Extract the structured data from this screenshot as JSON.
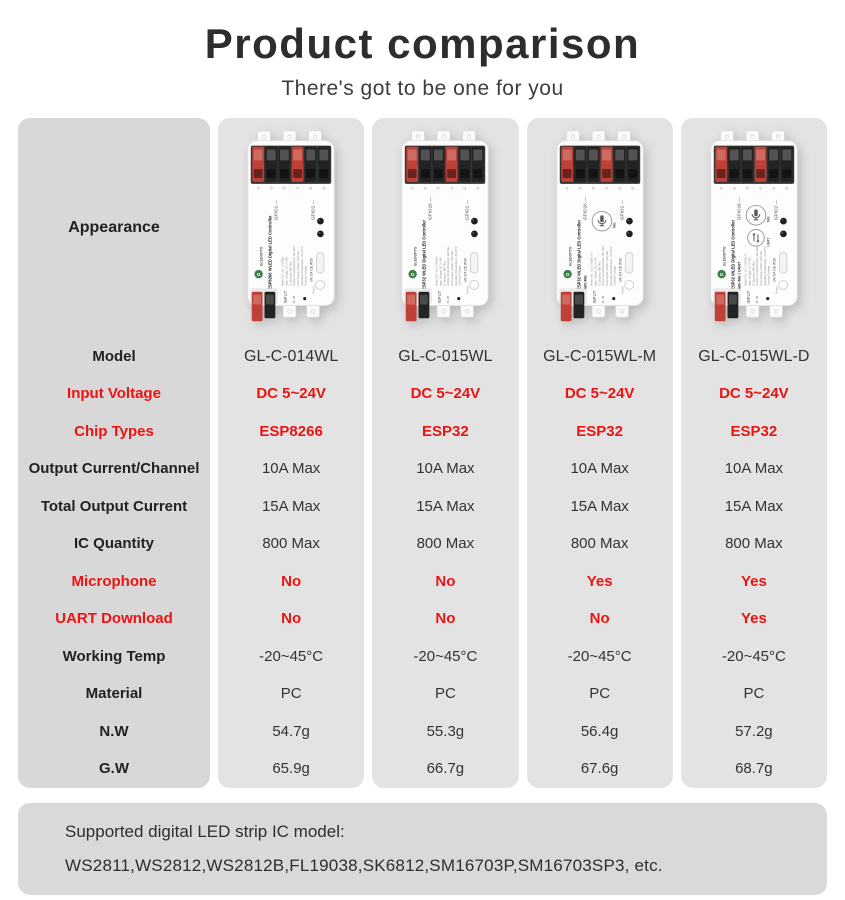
{
  "header": {
    "title": "Product comparison",
    "subtitle": "There's got to be one for you"
  },
  "table": {
    "appearance_label": "Appearance",
    "row_labels": [
      {
        "label": "Model",
        "red": false
      },
      {
        "label": "Input Voltage",
        "red": true
      },
      {
        "label": "Chip Types",
        "red": true
      },
      {
        "label": "Output Current/Channel",
        "red": false
      },
      {
        "label": "Total Output Current",
        "red": false
      },
      {
        "label": "IC Quantity",
        "red": false
      },
      {
        "label": "Microphone",
        "red": true
      },
      {
        "label": "UART Download",
        "red": true
      },
      {
        "label": "Working Temp",
        "red": false
      },
      {
        "label": "Material",
        "red": false
      },
      {
        "label": "N.W",
        "red": false
      },
      {
        "label": "G.W",
        "red": false
      }
    ],
    "products": [
      {
        "model": "GL-C-014WL",
        "values": [
          "GL-C-014WL",
          "DC 5~24V",
          "ESP8266",
          "10A Max",
          "15A Max",
          "800 Max",
          "No",
          "No",
          "-20~45°C",
          "PC",
          "54.7g",
          "65.9g"
        ],
        "device": {
          "brand": "GLEDOPTO",
          "line1": "ESP8266 WLED Digital LED Controller",
          "line2": "",
          "gpio1": "GPIO1",
          "gpio2": "GPIO2",
          "has_mic": false,
          "has_uart": false,
          "mic_label": "Mic",
          "uart_label": "UART",
          "input_label": "INPUT",
          "reset_label": "Reset",
          "cert_marks": "UK CA  CE  IP20",
          "spec_lines": [
            "Model NO.: GL-C-014WL",
            "Input Voltage: DC 5~24V",
            "IC Quantity: 800 Max",
            "Output Current/Channel: 10A Max",
            "Total Output Current: 15A Max",
            "Operating Temperature: -20~45°C",
            "Constant Voltage"
          ]
        }
      },
      {
        "model": "GL-C-015WL",
        "values": [
          "GL-C-015WL",
          "DC 5~24V",
          "ESP32",
          "10A Max",
          "15A Max",
          "800 Max",
          "No",
          "No",
          "-20~45°C",
          "PC",
          "55.3g",
          "66.7g"
        ],
        "device": {
          "brand": "GLEDOPTO",
          "line1": "ESP32 WLED Digital LED Controller",
          "line2": "",
          "gpio1": "GPIO16",
          "gpio2": "GPIO2",
          "has_mic": false,
          "has_uart": false,
          "mic_label": "Mic",
          "uart_label": "UART",
          "input_label": "INPUT",
          "reset_label": "Reset",
          "cert_marks": "UK CA  CE  IP20",
          "spec_lines": [
            "Model NO.: GL-C-015WL",
            "Input Voltage: DC 5~24V",
            "IC Quantity: 800 Max",
            "Output Current/Channel: 10A Max",
            "Total Output Current: 15A Max",
            "Operating Temperature: -20~45°C",
            "Constant Voltage"
          ]
        }
      },
      {
        "model": "GL-C-015WL-M",
        "values": [
          "GL-C-015WL-M",
          "DC 5~24V",
          "ESP32",
          "10A Max",
          "15A Max",
          "800 Max",
          "Yes",
          "No",
          "-20~45°C",
          "PC",
          "56.4g",
          "67.6g"
        ],
        "device": {
          "brand": "GLEDOPTO",
          "line1": "ESP32 WLED Digital LED Controller",
          "line2": "with Mic",
          "gpio1": "GPIO16",
          "gpio2": "GPIO2",
          "has_mic": true,
          "has_uart": false,
          "mic_label": "Mic",
          "uart_label": "UART",
          "input_label": "INPUT",
          "reset_label": "Reset",
          "cert_marks": "UK CA  CE  IP20",
          "spec_lines": [
            "Model NO.: GL-C-015WL-M",
            "Input Voltage: DC 5~24V",
            "IC Quantity: 800 Max",
            "Output Current/Channel: 10A Max",
            "Total Output Current: 15A Max",
            "Operating Temperature: -20~45°C",
            "Constant Voltage"
          ]
        }
      },
      {
        "model": "GL-C-015WL-D",
        "values": [
          "GL-C-015WL-D",
          "DC 5~24V",
          "ESP32",
          "10A Max",
          "15A Max",
          "800 Max",
          "Yes",
          "Yes",
          "-20~45°C",
          "PC",
          "57.2g",
          "68.7g"
        ],
        "device": {
          "brand": "GLEDOPTO",
          "line1": "ESP32 WLED Digital LED Controller",
          "line2": "with Mic / UART",
          "gpio1": "GPIO16",
          "gpio2": "GPIO2",
          "has_mic": true,
          "has_uart": true,
          "mic_label": "Mic",
          "uart_label": "UART",
          "input_label": "INPUT",
          "reset_label": "Reset",
          "cert_marks": "UK CA  CE  IP20",
          "spec_lines": [
            "Model NO.: GL-C-015WL-D",
            "Input Voltage: DC 5~24V",
            "IC Quantity: 800 Max",
            "Output Current/Channel: 10A Max",
            "Total Output Current: 15A Max",
            "Operating Temperature: -20~45°C",
            "Constant Voltage"
          ]
        }
      }
    ]
  },
  "footer": {
    "line1": "Supported digital LED strip IC model:",
    "line2": "WS2811,WS2812,WS2812B,FL19038,SK6812,SM16703P,SM16703SP3, etc."
  },
  "colors": {
    "accent_red": "#ec1313",
    "label_col_bg": "#d8d8d8",
    "product_col_bg": "#e3e3e3",
    "footer_bg": "#d9d9d9",
    "terminal_red": "#bf4036",
    "terminal_black": "#232323",
    "brand_green": "#3d7f4b"
  }
}
